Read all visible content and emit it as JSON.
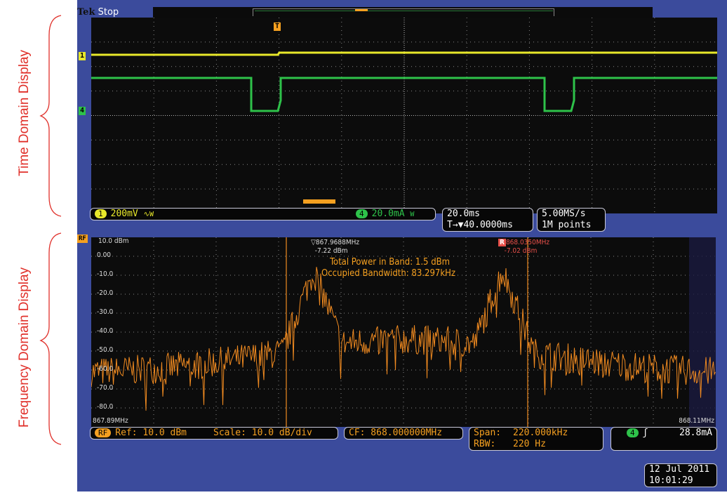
{
  "annotations": {
    "time": "Time Domain Display",
    "freq": "Frequency Domain Display",
    "color": "#e0302a"
  },
  "top": {
    "brand": "Tek",
    "state": "Stop"
  },
  "time_domain": {
    "ch1_marker": "1",
    "ch4_marker": "4",
    "trigger_marker": "T",
    "ch1_color": "#e8e82a",
    "ch4_color": "#2ec24a"
  },
  "status": {
    "ch1_badge": "1",
    "ch1_scale": "200mV",
    "ch1_coupling": "∿W",
    "ch4_badge": "4",
    "ch4_scale": "20.0mA",
    "ch4_coupling": "W",
    "timebase": "20.0ms",
    "trigger_pos": "T→▼40.0000ms",
    "sample_rate": "5.00MS/s",
    "record_length": "1M points"
  },
  "freq_domain": {
    "rf_marker": "RF",
    "ref_label": "10.0 dBm",
    "y_ticks": [
      "0.00",
      "-10.0",
      "-20.0",
      "-30.0",
      "-40.0",
      "-50.0",
      "-60.0",
      "-70.0",
      "-80.0"
    ],
    "x_start": "867.89MHz",
    "x_end": "868.11MHz",
    "marker1": {
      "freq": "867.9688MHz",
      "level": "-7.22 dBm"
    },
    "marker2": {
      "label": "R",
      "freq": "868.0350MHz",
      "level": "-7.02 dBm"
    },
    "total_power": "Total Power in Band: 1.5 dBm",
    "occupied_bw": "Occupied Bandwidth: 83.297kHz",
    "trace_color": "#f08a20"
  },
  "bottom": {
    "rf_badge": "RF",
    "ref": "Ref: 10.0 dBm",
    "scale": "Scale: 10.0 dB/div",
    "cf": "CF: 868.000000MHz",
    "span_label": "Span:",
    "span": "220.000kHz",
    "rbw_label": "RBW:",
    "rbw": "220 Hz",
    "trig_badge": "4",
    "trig_slope": "ʃ",
    "trig_level": "28.8mA"
  },
  "datetime": {
    "date": "12 Jul  2011",
    "time": "10:01:29"
  }
}
